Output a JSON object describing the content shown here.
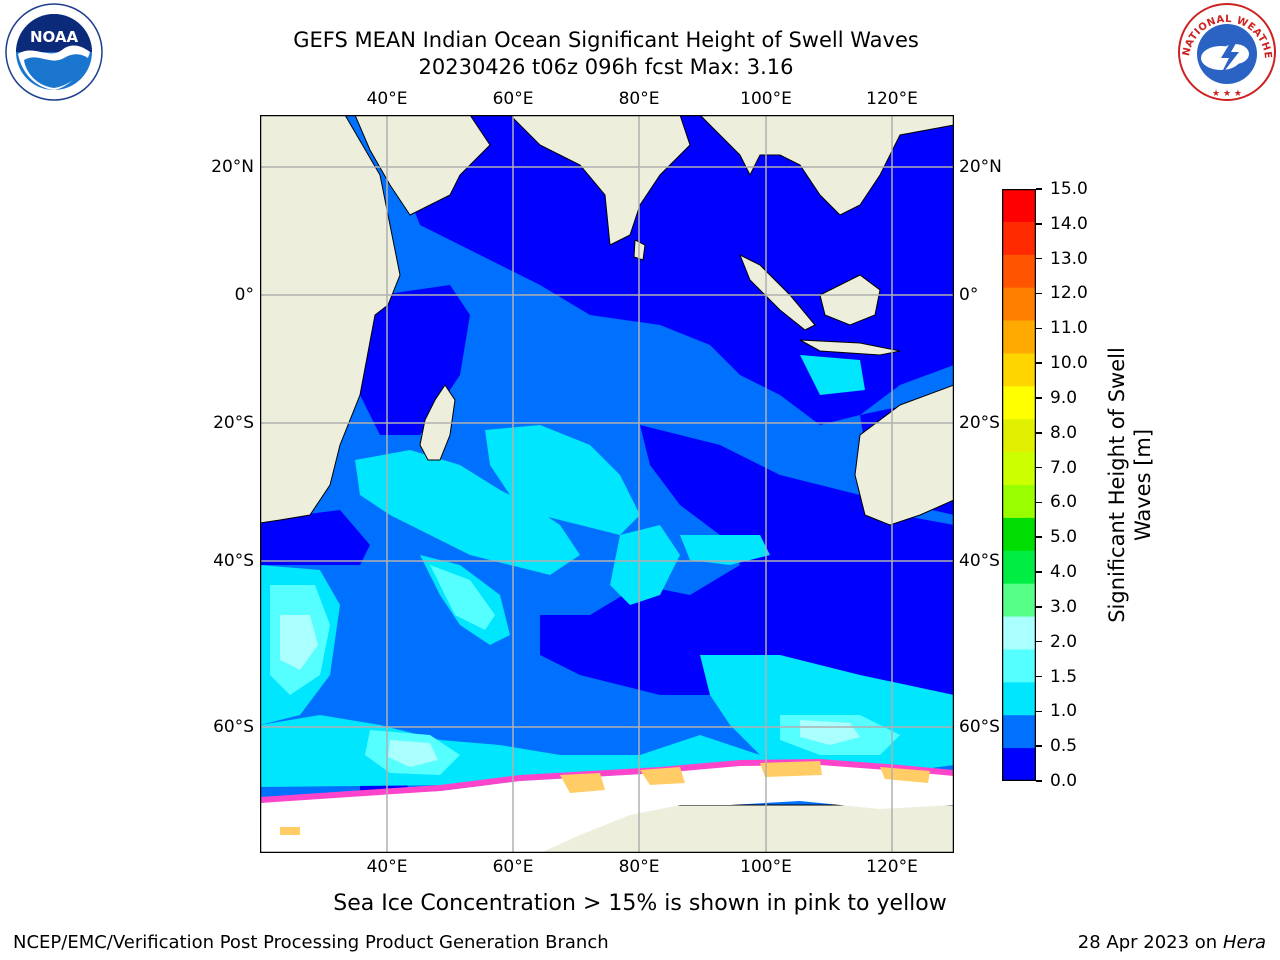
{
  "title": {
    "line1": "GEFS MEAN Indian Ocean Significant Height of Swell Waves",
    "line2": "20230426 t06z 096h fcst   Max: 3.16"
  },
  "logos": {
    "left_text": "NOAA",
    "left_ring_text": "NATIONAL OCEANIC AND ATMOSPHERIC ADMINISTRATION · U.S. DEPARTMENT OF COMMERCE",
    "right_ring_text": "NATIONAL WEATHER SERVICE"
  },
  "map": {
    "top_lon_labels": [
      "40°E",
      "60°E",
      "80°E",
      "100°E",
      "120°E"
    ],
    "bottom_lon_labels": [
      "40°E",
      "60°E",
      "80°E",
      "100°E",
      "120°E"
    ],
    "left_lat_labels": [
      "20°N",
      "0°",
      "20°S",
      "40°S",
      "60°S"
    ],
    "right_lat_labels": [
      "20°N",
      "0°",
      "20°S",
      "40°S",
      "60°S"
    ],
    "colors": {
      "ocean_deep": "#0000ff",
      "ocean_mid": "#0070ff",
      "ocean_cyan": "#00e6ff",
      "ocean_lightcyan": "#55ffff",
      "ocean_paleblue": "#aaffff",
      "land": "#eeeedd",
      "grid": "#b0b0b0",
      "ice_pink": "#ff44cc",
      "ice_yellow": "#ffcc66",
      "ice_white": "#ffffff"
    }
  },
  "colorbar": {
    "ticks": [
      "15.0",
      "14.0",
      "13.0",
      "12.0",
      "11.0",
      "10.0",
      "9.0",
      "8.0",
      "7.0",
      "6.0",
      "5.0",
      "4.0",
      "3.0",
      "2.0",
      "1.5",
      "1.0",
      "0.5",
      "0.0"
    ],
    "colors_top_to_bottom": [
      "#ff0000",
      "#ff2a00",
      "#ff5500",
      "#ff8000",
      "#ffaa00",
      "#ffd500",
      "#ffff00",
      "#e0f000",
      "#ccff00",
      "#99ff00",
      "#00dd00",
      "#00ee44",
      "#55ff88",
      "#aaffff",
      "#55ffff",
      "#00e6ff",
      "#0070ff",
      "#0000ff"
    ],
    "label_line1": "Significant Height of Swell",
    "label_line2": "Waves [m]"
  },
  "subcaption": "Sea Ice Concentration > 15% is shown in pink to yellow",
  "footer": {
    "left": "NCEP/EMC/Verification Post Processing Product Generation Branch",
    "right_date": "28 Apr 2023 on ",
    "right_machine": "Hera"
  }
}
